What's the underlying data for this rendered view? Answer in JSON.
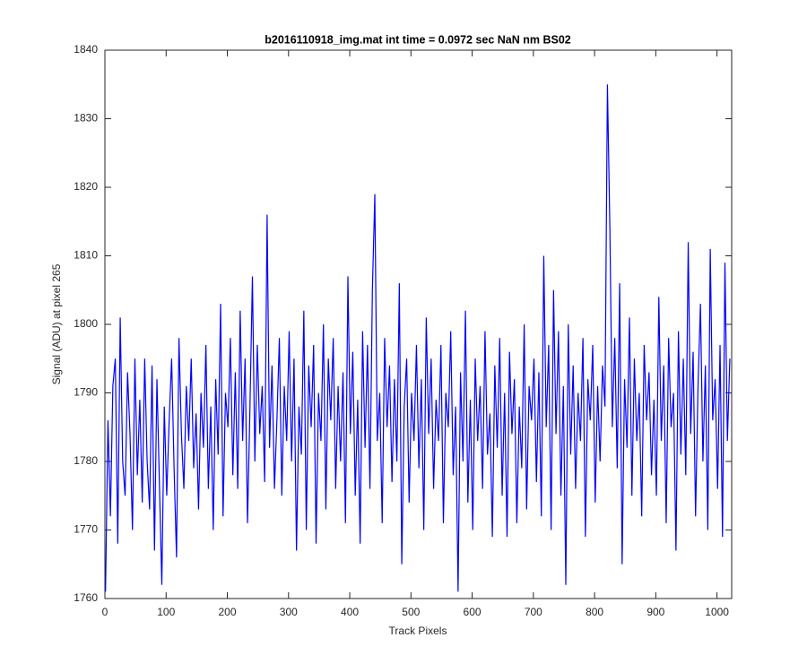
{
  "chart_data": {
    "type": "line",
    "title": "b2016110918_img.mat int time = 0.0972 sec  NaN nm BS02",
    "xlabel": "Track Pixels",
    "ylabel": "Signal (ADU) at pixel 265",
    "xlim": [
      0,
      1024
    ],
    "ylim": [
      1760,
      1840
    ],
    "xticks": [
      0,
      100,
      200,
      300,
      400,
      500,
      600,
      700,
      800,
      900,
      1000
    ],
    "yticks": [
      1760,
      1770,
      1780,
      1790,
      1800,
      1810,
      1820,
      1830,
      1840
    ],
    "grid": false,
    "x": [
      1,
      5,
      9,
      13,
      17,
      21,
      25,
      29,
      33,
      37,
      41,
      45,
      49,
      53,
      57,
      61,
      65,
      69,
      73,
      77,
      81,
      85,
      89,
      93,
      97,
      101,
      105,
      109,
      113,
      117,
      121,
      125,
      129,
      133,
      137,
      141,
      145,
      149,
      153,
      157,
      161,
      165,
      169,
      173,
      177,
      181,
      185,
      189,
      193,
      197,
      201,
      205,
      209,
      213,
      217,
      221,
      225,
      229,
      233,
      237,
      241,
      245,
      249,
      253,
      257,
      261,
      265,
      269,
      273,
      277,
      281,
      285,
      289,
      293,
      297,
      301,
      305,
      309,
      313,
      317,
      321,
      325,
      329,
      333,
      337,
      341,
      345,
      349,
      353,
      357,
      361,
      365,
      369,
      373,
      377,
      381,
      385,
      389,
      393,
      397,
      401,
      405,
      409,
      413,
      417,
      421,
      425,
      429,
      433,
      437,
      441,
      445,
      449,
      453,
      457,
      461,
      465,
      469,
      473,
      477,
      481,
      485,
      489,
      493,
      497,
      501,
      505,
      509,
      513,
      517,
      521,
      525,
      529,
      533,
      537,
      541,
      545,
      549,
      553,
      557,
      561,
      565,
      569,
      573,
      577,
      581,
      585,
      589,
      593,
      597,
      601,
      605,
      609,
      613,
      617,
      621,
      625,
      629,
      633,
      637,
      641,
      645,
      649,
      653,
      657,
      661,
      665,
      669,
      673,
      677,
      681,
      685,
      689,
      693,
      697,
      701,
      705,
      709,
      713,
      717,
      721,
      725,
      729,
      733,
      737,
      741,
      745,
      749,
      753,
      757,
      761,
      765,
      769,
      773,
      777,
      781,
      785,
      789,
      793,
      797,
      801,
      805,
      809,
      813,
      817,
      821,
      825,
      829,
      833,
      837,
      841,
      845,
      849,
      853,
      857,
      861,
      865,
      869,
      873,
      877,
      881,
      885,
      889,
      893,
      897,
      901,
      905,
      909,
      913,
      917,
      921,
      925,
      929,
      933,
      937,
      941,
      945,
      949,
      953,
      957,
      961,
      965,
      969,
      973,
      977,
      981,
      985,
      989,
      993,
      997,
      1001,
      1005,
      1009,
      1013,
      1017,
      1021
    ],
    "series": [
      {
        "color": "#0000ff",
        "values": [
          1761,
          1786,
          1772,
          1791,
          1795,
          1768,
          1801,
          1780,
          1775,
          1793,
          1784,
          1770,
          1795,
          1778,
          1789,
          1774,
          1795,
          1780,
          1773,
          1794,
          1767,
          1792,
          1777,
          1762,
          1788,
          1775,
          1786,
          1795,
          1779,
          1766,
          1798,
          1784,
          1776,
          1791,
          1783,
          1795,
          1779,
          1787,
          1773,
          1790,
          1782,
          1797,
          1776,
          1788,
          1770,
          1792,
          1781,
          1803,
          1772,
          1790,
          1785,
          1798,
          1778,
          1793,
          1776,
          1802,
          1783,
          1795,
          1771,
          1788,
          1807,
          1780,
          1797,
          1784,
          1791,
          1777,
          1816,
          1782,
          1794,
          1776,
          1786,
          1798,
          1775,
          1791,
          1783,
          1799,
          1780,
          1795,
          1767,
          1788,
          1781,
          1802,
          1770,
          1794,
          1785,
          1797,
          1768,
          1790,
          1783,
          1800,
          1773,
          1795,
          1786,
          1798,
          1776,
          1791,
          1780,
          1793,
          1771,
          1807,
          1784,
          1796,
          1775,
          1789,
          1768,
          1799,
          1782,
          1797,
          1776,
          1805,
          1819,
          1783,
          1790,
          1771,
          1798,
          1785,
          1794,
          1777,
          1792,
          1780,
          1806,
          1765,
          1788,
          1795,
          1774,
          1790,
          1783,
          1797,
          1779,
          1792,
          1770,
          1801,
          1784,
          1795,
          1776,
          1789,
          1783,
          1797,
          1771,
          1790,
          1785,
          1799,
          1778,
          1788,
          1761,
          1793,
          1780,
          1802,
          1774,
          1789,
          1770,
          1795,
          1783,
          1791,
          1776,
          1799,
          1781,
          1787,
          1769,
          1794,
          1782,
          1798,
          1775,
          1790,
          1769,
          1796,
          1784,
          1792,
          1771,
          1788,
          1779,
          1800,
          1773,
          1791,
          1786,
          1795,
          1777,
          1793,
          1772,
          1810,
          1785,
          1797,
          1770,
          1805,
          1784,
          1799,
          1775,
          1791,
          1762,
          1800,
          1781,
          1794,
          1776,
          1790,
          1783,
          1798,
          1769,
          1792,
          1786,
          1797,
          1774,
          1791,
          1780,
          1794,
          1788,
          1835,
          1814,
          1785,
          1798,
          1779,
          1806,
          1765,
          1792,
          1782,
          1801,
          1775,
          1795,
          1783,
          1790,
          1772,
          1797,
          1786,
          1793,
          1778,
          1789,
          1775,
          1804,
          1783,
          1794,
          1771,
          1798,
          1785,
          1790,
          1767,
          1799,
          1781,
          1795,
          1778,
          1812,
          1784,
          1796,
          1772,
          1791,
          1803,
          1780,
          1794,
          1770,
          1811,
          1786,
          1792,
          1776,
          1797,
          1769,
          1809,
          1783,
          1795
        ]
      }
    ]
  }
}
